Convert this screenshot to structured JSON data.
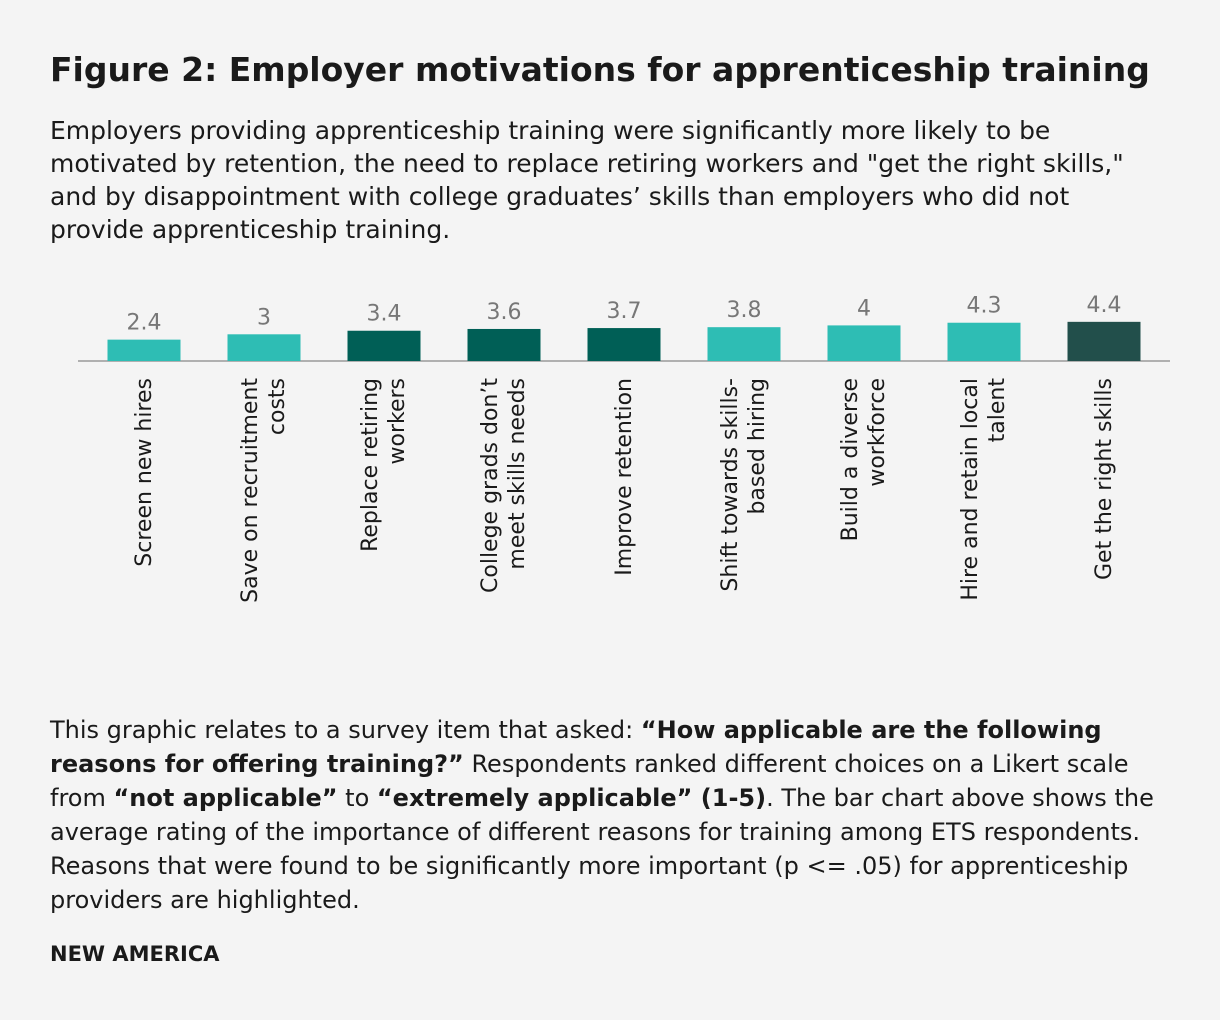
{
  "chart_data": {
    "type": "bar",
    "title": "Figure 2: Employer motivations for apprenticeship training",
    "subtitle": "Employers providing apprenticeship training were significantly more likely to be motivated by retention, the need to replace retiring workers and \"get the right skills,\" and by disappointment with college graduates’ skills than employers who did not provide apprenticeship training.",
    "categories": [
      "Screen new hires",
      "Save on recruitment costs",
      "Replace retiring workers",
      "College grads don’t meet skills needs",
      "Improve retention",
      "Shift towards skills-based hiring",
      "Build a diverse workforce",
      "Hire and retain local talent",
      "Get the right skills"
    ],
    "values": [
      2.4,
      3,
      3.4,
      3.6,
      3.7,
      3.8,
      4,
      4.3,
      4.4
    ],
    "colors": [
      "#2ebdb4",
      "#2ebdb4",
      "#005f56",
      "#005f56",
      "#005f56",
      "#2ebdb4",
      "#2ebdb4",
      "#2ebdb4",
      "#224f4b"
    ],
    "ylim": [
      0,
      5
    ],
    "note": [
      {
        "text": "This graphic relates to a survey item that asked: ",
        "bold": false
      },
      {
        "text": "“How applicable are the following reasons for offering training?”",
        "bold": true
      },
      {
        "text": " Respondents ranked different choices on a Likert scale from ",
        "bold": false
      },
      {
        "text": "“not applicable”",
        "bold": true
      },
      {
        "text": " to ",
        "bold": false
      },
      {
        "text": "“extremely applicable” (1-5)",
        "bold": true
      },
      {
        "text": ". The bar chart above shows the average rating of the importance of different reasons for training among ETS respondents. Reasons that were found to be significantly more important (p <= .05) for apprenticeship providers are highlighted.",
        "bold": false
      }
    ],
    "source": "NEW AMERICA"
  }
}
